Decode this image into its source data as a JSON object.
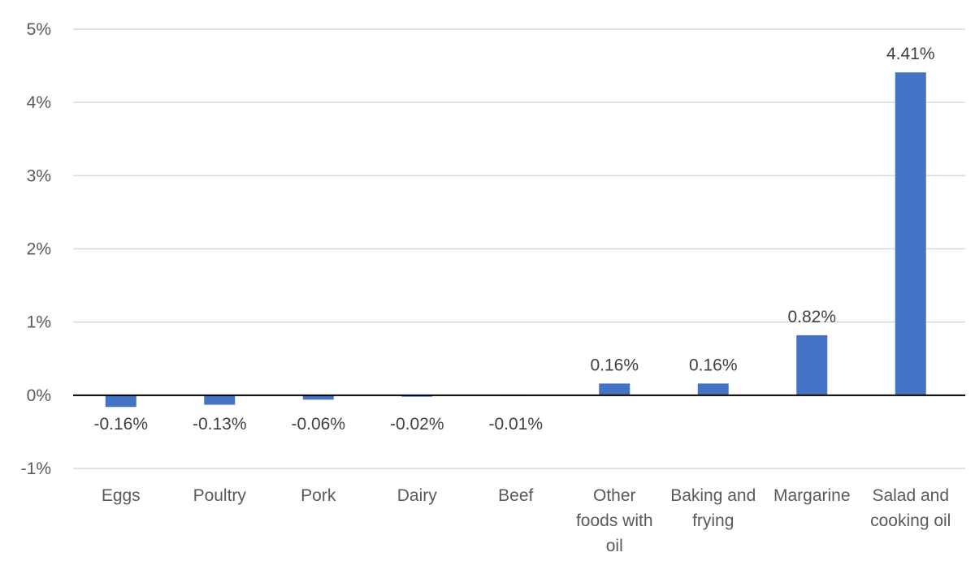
{
  "chart_data": {
    "type": "bar",
    "categories": [
      [
        "Eggs"
      ],
      [
        "Poultry"
      ],
      [
        "Pork"
      ],
      [
        "Dairy"
      ],
      [
        "Beef"
      ],
      [
        "Other",
        "foods with",
        "oil"
      ],
      [
        "Baking and",
        "frying"
      ],
      [
        "Margarine"
      ],
      [
        "Salad and",
        "cooking oil"
      ]
    ],
    "values": [
      -0.16,
      -0.13,
      -0.06,
      -0.02,
      -0.01,
      0.16,
      0.16,
      0.82,
      4.41
    ],
    "data_labels": [
      "-0.16%",
      "-0.13%",
      "-0.06%",
      "-0.02%",
      "-0.01%",
      "0.16%",
      "0.16%",
      "0.82%",
      "4.41%"
    ],
    "y_ticks": [
      -1,
      0,
      1,
      2,
      3,
      4,
      5
    ],
    "y_tick_labels": [
      "-1%",
      "0%",
      "1%",
      "2%",
      "3%",
      "4%",
      "5%"
    ],
    "ylim": [
      -1,
      5
    ],
    "grid": true,
    "title": "",
    "xlabel": "",
    "ylabel": "",
    "bar_color": "#4472c4"
  }
}
